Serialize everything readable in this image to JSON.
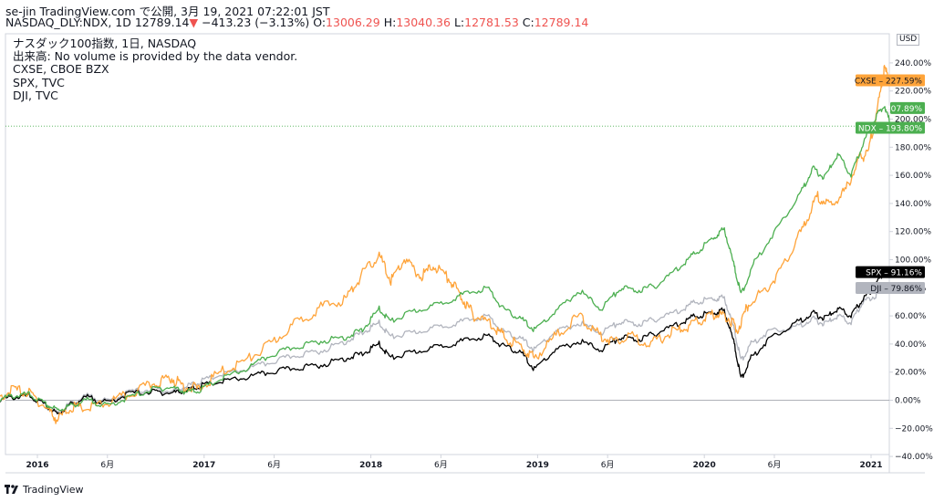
{
  "header": {
    "publish_line": "se-jin TradingView.com で公開, 3月 19, 2021 07:22:01 JST",
    "symbol": "NASDAQ_DLY:NDX, 1D",
    "last": "12789.14",
    "change": "−413.23 (−3.13%)",
    "o_label": "O:",
    "o_value": "13006.29",
    "h_label": "H:",
    "h_value": "13040.36",
    "l_label": "L:",
    "l_value": "12781.53",
    "c_label": "C:",
    "c_value": "12789.14"
  },
  "legend": [
    "ナスダック100指数, 1日, NASDAQ",
    "出来高: No volume is provided by the data vendor.",
    "CXSE, CBOE BZX",
    "SPX, TVC",
    "DJI, TVC"
  ],
  "currency": "USD",
  "footer_brand": "TradingView",
  "colors": {
    "CXSE": "#ffa43a",
    "NDX": "#4caf50",
    "SPX": "#000000",
    "DJI": "#b2b5be",
    "down": "#ef5350"
  },
  "chart_data": {
    "type": "line",
    "ylim": [
      -40,
      250
    ],
    "y_ticks": [
      "240.00%",
      "220.00%",
      "200.00%",
      "180.00%",
      "160.00%",
      "140.00%",
      "120.00%",
      "100.00%",
      "80.00%",
      "60.00%",
      "40.00%",
      "20.00%",
      "0.00%",
      "−20.00%",
      "−40.00%"
    ],
    "x_ticks": [
      {
        "label": "2016",
        "t": 2016.0,
        "bold": true
      },
      {
        "label": "6月",
        "t": 2016.42,
        "bold": false
      },
      {
        "label": "2017",
        "t": 2017.0,
        "bold": true
      },
      {
        "label": "6月",
        "t": 2017.42,
        "bold": false
      },
      {
        "label": "2018",
        "t": 2018.0,
        "bold": true
      },
      {
        "label": "6月",
        "t": 2018.42,
        "bold": false
      },
      {
        "label": "2019",
        "t": 2019.0,
        "bold": true
      },
      {
        "label": "6月",
        "t": 2019.42,
        "bold": false
      },
      {
        "label": "2020",
        "t": 2020.0,
        "bold": true
      },
      {
        "label": "6月",
        "t": 2020.42,
        "bold": false
      },
      {
        "label": "2021",
        "t": 2021.0,
        "bold": true
      }
    ],
    "series": [
      {
        "name": "CXSE",
        "last_label": "227.59%",
        "points": [
          [
            2015.75,
            0
          ],
          [
            2015.85,
            8
          ],
          [
            2015.95,
            5
          ],
          [
            2016.05,
            -5
          ],
          [
            2016.12,
            -14
          ],
          [
            2016.2,
            -5
          ],
          [
            2016.3,
            -6
          ],
          [
            2016.42,
            -2
          ],
          [
            2016.55,
            4
          ],
          [
            2016.7,
            12
          ],
          [
            2016.8,
            16
          ],
          [
            2016.88,
            10
          ],
          [
            2016.97,
            8
          ],
          [
            2017.1,
            20
          ],
          [
            2017.25,
            28
          ],
          [
            2017.4,
            40
          ],
          [
            2017.55,
            55
          ],
          [
            2017.7,
            66
          ],
          [
            2017.85,
            72
          ],
          [
            2017.95,
            90
          ],
          [
            2018.05,
            103
          ],
          [
            2018.12,
            85
          ],
          [
            2018.2,
            100
          ],
          [
            2018.3,
            88
          ],
          [
            2018.38,
            96
          ],
          [
            2018.48,
            85
          ],
          [
            2018.55,
            72
          ],
          [
            2018.62,
            60
          ],
          [
            2018.72,
            55
          ],
          [
            2018.8,
            45
          ],
          [
            2018.9,
            38
          ],
          [
            2018.98,
            30
          ],
          [
            2019.1,
            45
          ],
          [
            2019.25,
            60
          ],
          [
            2019.35,
            48
          ],
          [
            2019.45,
            42
          ],
          [
            2019.55,
            46
          ],
          [
            2019.68,
            40
          ],
          [
            2019.8,
            48
          ],
          [
            2019.9,
            52
          ],
          [
            2020.0,
            58
          ],
          [
            2020.08,
            62
          ],
          [
            2020.15,
            58
          ],
          [
            2020.2,
            50
          ],
          [
            2020.27,
            70
          ],
          [
            2020.38,
            80
          ],
          [
            2020.5,
            100
          ],
          [
            2020.6,
            125
          ],
          [
            2020.68,
            145
          ],
          [
            2020.76,
            138
          ],
          [
            2020.85,
            150
          ],
          [
            2020.93,
            172
          ],
          [
            2020.98,
            175
          ],
          [
            2021.05,
            215
          ],
          [
            2021.08,
            235
          ],
          [
            2021.12,
            228
          ]
        ]
      },
      {
        "name": "NDX",
        "last_label": "193.80%",
        "points": [
          [
            2015.75,
            0
          ],
          [
            2015.85,
            3
          ],
          [
            2015.95,
            4
          ],
          [
            2016.05,
            -3
          ],
          [
            2016.12,
            -7
          ],
          [
            2016.2,
            -4
          ],
          [
            2016.3,
            0
          ],
          [
            2016.42,
            -4
          ],
          [
            2016.55,
            2
          ],
          [
            2016.7,
            8
          ],
          [
            2016.8,
            9
          ],
          [
            2016.9,
            6
          ],
          [
            2016.97,
            7
          ],
          [
            2017.1,
            15
          ],
          [
            2017.25,
            22
          ],
          [
            2017.4,
            32
          ],
          [
            2017.55,
            38
          ],
          [
            2017.7,
            42
          ],
          [
            2017.85,
            45
          ],
          [
            2017.95,
            50
          ],
          [
            2018.05,
            65
          ],
          [
            2018.12,
            56
          ],
          [
            2018.25,
            63
          ],
          [
            2018.4,
            68
          ],
          [
            2018.55,
            75
          ],
          [
            2018.7,
            80
          ],
          [
            2018.8,
            64
          ],
          [
            2018.9,
            58
          ],
          [
            2018.98,
            50
          ],
          [
            2019.1,
            62
          ],
          [
            2019.25,
            78
          ],
          [
            2019.38,
            65
          ],
          [
            2019.5,
            80
          ],
          [
            2019.6,
            78
          ],
          [
            2019.72,
            82
          ],
          [
            2019.85,
            95
          ],
          [
            2019.95,
            105
          ],
          [
            2020.05,
            115
          ],
          [
            2020.12,
            122
          ],
          [
            2020.18,
            95
          ],
          [
            2020.22,
            75
          ],
          [
            2020.3,
            98
          ],
          [
            2020.45,
            125
          ],
          [
            2020.58,
            148
          ],
          [
            2020.65,
            165
          ],
          [
            2020.72,
            158
          ],
          [
            2020.8,
            175
          ],
          [
            2020.88,
            160
          ],
          [
            2020.95,
            182
          ],
          [
            2021.02,
            200
          ],
          [
            2021.08,
            210
          ],
          [
            2021.12,
            195
          ]
        ]
      },
      {
        "name": "SPX",
        "last_label": "91.16%",
        "points": [
          [
            2015.75,
            0
          ],
          [
            2015.85,
            2
          ],
          [
            2015.95,
            3
          ],
          [
            2016.05,
            -4
          ],
          [
            2016.12,
            -10
          ],
          [
            2016.2,
            -3
          ],
          [
            2016.3,
            2
          ],
          [
            2016.42,
            -2
          ],
          [
            2016.55,
            5
          ],
          [
            2016.7,
            6
          ],
          [
            2016.8,
            5
          ],
          [
            2016.9,
            7
          ],
          [
            2016.97,
            10
          ],
          [
            2017.1,
            13
          ],
          [
            2017.25,
            16
          ],
          [
            2017.4,
            20
          ],
          [
            2017.55,
            23
          ],
          [
            2017.7,
            25
          ],
          [
            2017.85,
            30
          ],
          [
            2017.95,
            33
          ],
          [
            2018.05,
            40
          ],
          [
            2018.12,
            30
          ],
          [
            2018.25,
            34
          ],
          [
            2018.4,
            38
          ],
          [
            2018.55,
            42
          ],
          [
            2018.7,
            46
          ],
          [
            2018.8,
            38
          ],
          [
            2018.9,
            34
          ],
          [
            2018.98,
            22
          ],
          [
            2019.1,
            35
          ],
          [
            2019.25,
            42
          ],
          [
            2019.38,
            36
          ],
          [
            2019.5,
            45
          ],
          [
            2019.6,
            43
          ],
          [
            2019.72,
            48
          ],
          [
            2019.85,
            55
          ],
          [
            2019.95,
            60
          ],
          [
            2020.05,
            62
          ],
          [
            2020.12,
            64
          ],
          [
            2020.18,
            40
          ],
          [
            2020.22,
            15
          ],
          [
            2020.28,
            30
          ],
          [
            2020.4,
            45
          ],
          [
            2020.55,
            55
          ],
          [
            2020.65,
            62
          ],
          [
            2020.72,
            58
          ],
          [
            2020.8,
            65
          ],
          [
            2020.88,
            60
          ],
          [
            2020.95,
            72
          ],
          [
            2021.02,
            80
          ],
          [
            2021.08,
            92
          ],
          [
            2021.12,
            91
          ]
        ]
      },
      {
        "name": "DJI",
        "last_label": "79.86%",
        "points": [
          [
            2015.75,
            0
          ],
          [
            2015.85,
            2
          ],
          [
            2015.95,
            3
          ],
          [
            2016.05,
            -4
          ],
          [
            2016.12,
            -9
          ],
          [
            2016.2,
            -2
          ],
          [
            2016.3,
            3
          ],
          [
            2016.42,
            -1
          ],
          [
            2016.55,
            6
          ],
          [
            2016.7,
            8
          ],
          [
            2016.8,
            6
          ],
          [
            2016.9,
            10
          ],
          [
            2016.97,
            13
          ],
          [
            2017.1,
            18
          ],
          [
            2017.25,
            22
          ],
          [
            2017.4,
            27
          ],
          [
            2017.55,
            32
          ],
          [
            2017.7,
            35
          ],
          [
            2017.85,
            42
          ],
          [
            2017.95,
            48
          ],
          [
            2018.05,
            55
          ],
          [
            2018.12,
            45
          ],
          [
            2018.25,
            48
          ],
          [
            2018.4,
            52
          ],
          [
            2018.55,
            56
          ],
          [
            2018.7,
            60
          ],
          [
            2018.8,
            48
          ],
          [
            2018.9,
            44
          ],
          [
            2018.98,
            36
          ],
          [
            2019.1,
            48
          ],
          [
            2019.25,
            55
          ],
          [
            2019.38,
            48
          ],
          [
            2019.5,
            56
          ],
          [
            2019.6,
            54
          ],
          [
            2019.72,
            58
          ],
          [
            2019.85,
            64
          ],
          [
            2019.95,
            70
          ],
          [
            2020.05,
            72
          ],
          [
            2020.12,
            73
          ],
          [
            2020.18,
            50
          ],
          [
            2020.22,
            28
          ],
          [
            2020.28,
            40
          ],
          [
            2020.4,
            50
          ],
          [
            2020.55,
            52
          ],
          [
            2020.65,
            58
          ],
          [
            2020.72,
            54
          ],
          [
            2020.8,
            60
          ],
          [
            2020.88,
            55
          ],
          [
            2020.95,
            70
          ],
          [
            2021.02,
            74
          ],
          [
            2021.08,
            80
          ],
          [
            2021.12,
            80
          ]
        ]
      }
    ]
  }
}
